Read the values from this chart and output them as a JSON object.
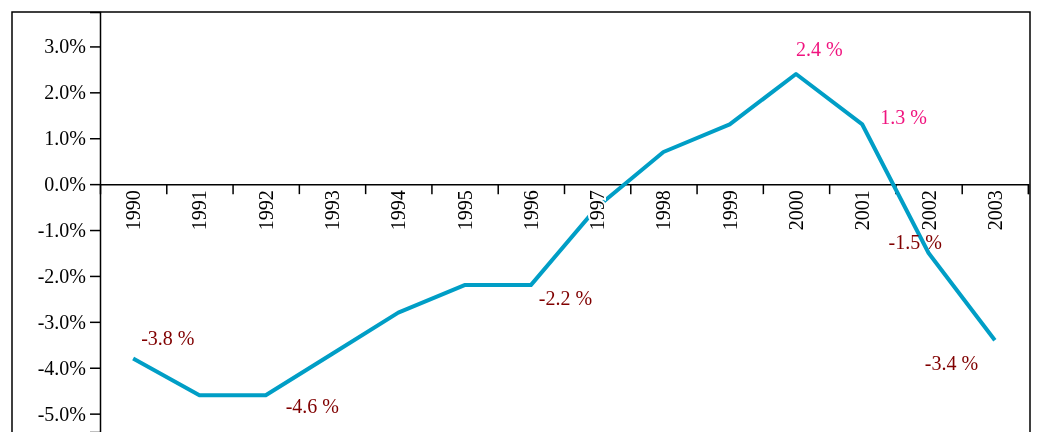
{
  "chart_data": {
    "type": "line",
    "categories": [
      "1990",
      "1991",
      "1992",
      "1993",
      "1994",
      "1995",
      "1996",
      "1997",
      "1998",
      "1999",
      "2000",
      "2001",
      "2002",
      "2003"
    ],
    "series": [
      {
        "color": "#009ec6",
        "values": [
          -3.8,
          -4.6,
          -4.6,
          -3.7,
          -2.8,
          -2.2,
          -2.2,
          -0.5,
          0.7,
          1.3,
          2.4,
          1.3,
          -1.5,
          -3.4
        ],
        "value_labels": [
          "-3.8 %",
          null,
          "-4.6 %",
          null,
          null,
          null,
          "-2.2 %",
          null,
          null,
          null,
          "2.4 %",
          "1.3 %",
          "-1.5 %",
          "-3.4 %"
        ]
      }
    ],
    "ylim": [
      -5.4,
      3.75
    ],
    "yticks": [
      {
        "value": -5,
        "label": "-5.0%"
      },
      {
        "value": -4,
        "label": "-4.0%"
      },
      {
        "value": -3,
        "label": "-3.0%"
      },
      {
        "value": -2,
        "label": "-2.0%"
      },
      {
        "value": -1,
        "label": "-1.0%"
      },
      {
        "value": 0,
        "label": "0.0%"
      },
      {
        "value": 1,
        "label": "1.0%"
      },
      {
        "value": 2,
        "label": "2.0%"
      },
      {
        "value": 3,
        "label": "3.0%"
      }
    ],
    "grid": false,
    "marker": "none",
    "line_style": "solid"
  }
}
